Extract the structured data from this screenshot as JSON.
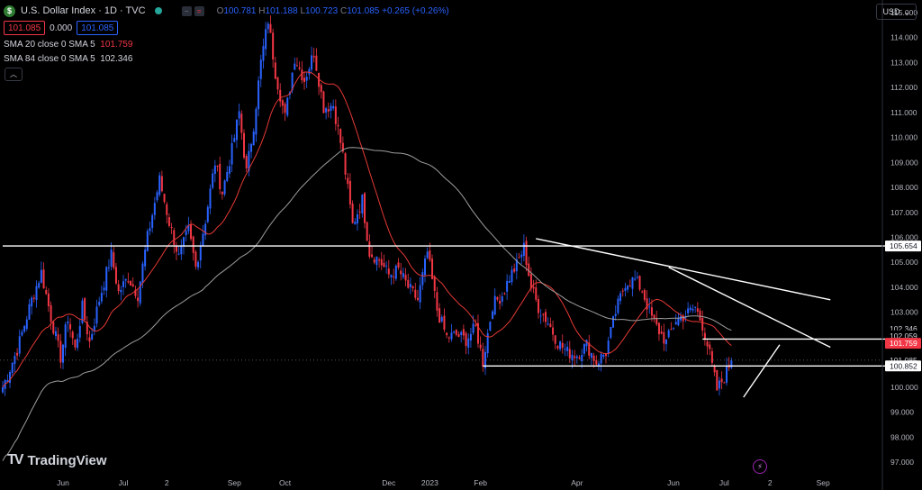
{
  "header": {
    "symbol": "U.S. Dollar Index · 1D · TVC",
    "logo_letter": "$",
    "ohlc": {
      "o_label": "O",
      "o": "100.781",
      "h_label": "H",
      "h": "101.188",
      "l_label": "L",
      "l": "100.723",
      "c_label": "C",
      "c": "101.085",
      "change": "+0.265 (+0.26%)"
    },
    "sell_price": "101.085",
    "spread": "0.000",
    "buy_price": "101.085",
    "currency": "USD"
  },
  "indicators": [
    {
      "label": "SMA 20 close 0 SMA 5",
      "value": "101.759",
      "color": "#f23645"
    },
    {
      "label": "SMA 84 close 0 SMA 5",
      "value": "102.346",
      "color": "#b2b5be"
    }
  ],
  "brand": "TradingView",
  "colors": {
    "up": "#2962ff",
    "down": "#f23645",
    "sma20": "#e53935",
    "sma84": "#9e9e9e",
    "background": "#000000",
    "grid_text": "#b2b5be"
  },
  "chart_data": {
    "type": "candlestick",
    "y_axis": {
      "ylim": [
        96.5,
        115.5
      ],
      "ticks": [
        "115.000",
        "114.000",
        "113.000",
        "112.000",
        "111.000",
        "110.000",
        "109.000",
        "108.000",
        "107.000",
        "106.000",
        "105.000",
        "104.000",
        "103.000",
        "102.000",
        "101.000",
        "100.000",
        "99.000",
        "98.000",
        "97.000"
      ],
      "tick_values": [
        115,
        114,
        113,
        112,
        111,
        110,
        109,
        108,
        107,
        106,
        105,
        104,
        103,
        102,
        101,
        100,
        99,
        98,
        97
      ]
    },
    "x_axis": {
      "labels": [
        "Jun",
        "Jul",
        "2",
        "Sep",
        "Oct",
        "Dec",
        "2023",
        "Feb",
        "Apr",
        "Jun",
        "Jul",
        "2",
        "Sep"
      ],
      "label_index": [
        25,
        50,
        68,
        96,
        117,
        160,
        177,
        198,
        238,
        278,
        299,
        318,
        340
      ]
    },
    "price_labels": [
      {
        "value": 105.654,
        "text": "105.654",
        "style": "white"
      },
      {
        "value": 102.346,
        "text": "102.346",
        "style": "plain"
      },
      {
        "value": 102.059,
        "text": "102.059",
        "style": "plain"
      },
      {
        "value": 101.759,
        "text": "101.759",
        "style": "red"
      },
      {
        "value": 101.085,
        "text": "101.085",
        "style": "plain"
      },
      {
        "value": 100.852,
        "text": "100.852",
        "style": "white"
      }
    ],
    "keypoints": [
      [
        0,
        100.0
      ],
      [
        6,
        101.5
      ],
      [
        12,
        103.5
      ],
      [
        16,
        104.6
      ],
      [
        20,
        102.8
      ],
      [
        24,
        101.2
      ],
      [
        27,
        102.8
      ],
      [
        30,
        101.5
      ],
      [
        33,
        103.2
      ],
      [
        36,
        101.8
      ],
      [
        40,
        103.5
      ],
      [
        45,
        105.3
      ],
      [
        48,
        103.8
      ],
      [
        52,
        104.4
      ],
      [
        56,
        103.7
      ],
      [
        60,
        106.0
      ],
      [
        65,
        108.3
      ],
      [
        69,
        106.6
      ],
      [
        73,
        105.2
      ],
      [
        77,
        106.3
      ],
      [
        80,
        104.8
      ],
      [
        84,
        106.7
      ],
      [
        88,
        109.0
      ],
      [
        91,
        107.8
      ],
      [
        95,
        109.5
      ],
      [
        98,
        111.0
      ],
      [
        101,
        108.6
      ],
      [
        104,
        110.5
      ],
      [
        107,
        113.0
      ],
      [
        110,
        114.7
      ],
      [
        113,
        112.6
      ],
      [
        117,
        110.8
      ],
      [
        121,
        113.2
      ],
      [
        125,
        112.3
      ],
      [
        129,
        113.4
      ],
      [
        133,
        111.2
      ],
      [
        137,
        111.3
      ],
      [
        141,
        109.3
      ],
      [
        145,
        106.5
      ],
      [
        149,
        107.5
      ],
      [
        152,
        105.4
      ],
      [
        156,
        105.1
      ],
      [
        160,
        104.5
      ],
      [
        164,
        104.7
      ],
      [
        168,
        104.0
      ],
      [
        172,
        103.5
      ],
      [
        176,
        105.4
      ],
      [
        180,
        103.1
      ],
      [
        184,
        102.0
      ],
      [
        188,
        102.1
      ],
      [
        192,
        101.9
      ],
      [
        196,
        102.4
      ],
      [
        199,
        101.0
      ],
      [
        203,
        103.3
      ],
      [
        207,
        103.7
      ],
      [
        210,
        104.4
      ],
      [
        213,
        104.9
      ],
      [
        216,
        105.6
      ],
      [
        219,
        104.0
      ],
      [
        222,
        103.2
      ],
      [
        226,
        102.6
      ],
      [
        230,
        101.8
      ],
      [
        234,
        101.4
      ],
      [
        238,
        101.3
      ],
      [
        242,
        101.7
      ],
      [
        246,
        101.0
      ],
      [
        250,
        101.4
      ],
      [
        254,
        103.0
      ],
      [
        258,
        104.2
      ],
      [
        262,
        104.3
      ],
      [
        265,
        103.9
      ],
      [
        268,
        103.0
      ],
      [
        271,
        102.4
      ],
      [
        275,
        101.8
      ],
      [
        279,
        102.7
      ],
      [
        283,
        102.9
      ],
      [
        287,
        103.2
      ],
      [
        290,
        102.5
      ],
      [
        293,
        101.3
      ],
      [
        296,
        99.9
      ],
      [
        299,
        100.4
      ],
      [
        302,
        101.1
      ]
    ],
    "candle_count": 303,
    "series": [
      {
        "name": "SMA 20 close 0 SMA 5",
        "period": 20
      },
      {
        "name": "SMA 84 close 0 SMA 5",
        "period": 84
      }
    ],
    "drawings": [
      {
        "type": "horizontal",
        "y": 105.654,
        "from": 0,
        "to": 380
      },
      {
        "type": "horizontal",
        "y": 100.852,
        "from": 199,
        "to": 380
      },
      {
        "type": "horizontal",
        "y": 101.93,
        "from": 290,
        "to": 380
      },
      {
        "type": "trend",
        "points": [
          [
            221,
            105.95
          ],
          [
            343,
            103.5
          ]
        ]
      },
      {
        "type": "trend",
        "points": [
          [
            276,
            104.8
          ],
          [
            343,
            101.6
          ]
        ]
      },
      {
        "type": "trend",
        "points": [
          [
            307,
            99.6
          ],
          [
            322,
            101.7
          ]
        ]
      }
    ],
    "grid": false,
    "legend": "top-left"
  }
}
